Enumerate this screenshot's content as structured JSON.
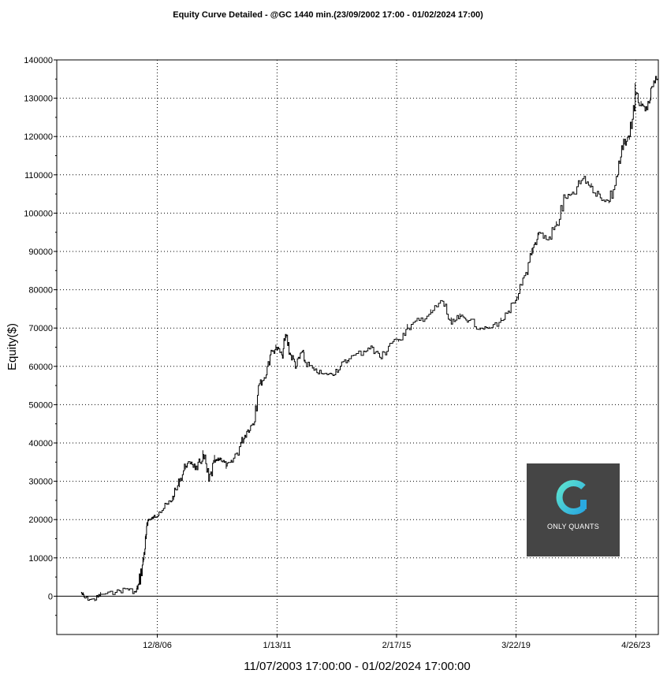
{
  "chart_data": {
    "type": "line",
    "title": "Equity Curve Detailed - @GC 1440 min.(23/09/2002 17:00 - 01/02/2024 17:00)",
    "xlabel": "11/07/2003 17:00:00 - 01/02/2024 17:00:00",
    "ylabel": "Equity($)",
    "ylim": [
      -10000,
      140000
    ],
    "yticks": [
      0,
      10000,
      20000,
      30000,
      40000,
      50000,
      60000,
      70000,
      80000,
      90000,
      100000,
      110000,
      120000,
      130000,
      140000
    ],
    "xticks": [
      "12/8/06",
      "1/13/11",
      "2/17/15",
      "3/22/19",
      "4/26/23"
    ],
    "xtick_years": [
      2006.94,
      2011.04,
      2015.13,
      2019.22,
      2023.32
    ],
    "xlim": [
      2003.5,
      2024.09
    ],
    "grid": true,
    "series": [
      {
        "x": [
          2004.33,
          2004.45,
          2004.8,
          2005.0,
          2005.5,
          2005.9,
          2006.2,
          2006.3,
          2006.45,
          2006.55,
          2006.62,
          2006.7,
          2006.8,
          2007.0,
          2007.3,
          2007.5,
          2007.7,
          2007.9,
          2008.1,
          2008.3,
          2008.5,
          2008.7,
          2008.9,
          2009.0,
          2009.1,
          2009.3,
          2009.5,
          2009.8,
          2010.0,
          2010.2,
          2010.4,
          2010.6,
          2010.8,
          2011.0,
          2011.2,
          2011.35,
          2011.5,
          2011.7,
          2011.9,
          2012.0,
          2012.3,
          2012.6,
          2012.9,
          2013.2,
          2013.5,
          2014.0,
          2014.3,
          2014.6,
          2014.9,
          2015.2,
          2015.5,
          2015.9,
          2016.3,
          2016.7,
          2017.0,
          2017.3,
          2017.6,
          2018.0,
          2018.3,
          2018.7,
          2019.0,
          2019.3,
          2019.6,
          2019.8,
          2020.0,
          2020.3,
          2020.6,
          2020.9,
          2021.2,
          2021.5,
          2021.8,
          2022.1,
          2022.4,
          2022.7,
          2022.9,
          2023.1,
          2023.3,
          2023.5,
          2023.7,
          2023.9,
          2024.09
        ],
        "y": [
          1000,
          -500,
          -1000,
          500,
          1000,
          2000,
          1000,
          3000,
          9000,
          15000,
          20000,
          20000,
          20500,
          22000,
          24000,
          26000,
          30000,
          34000,
          35000,
          33000,
          37000,
          30000,
          35000,
          35500,
          36000,
          34000,
          35000,
          40000,
          43000,
          45000,
          55000,
          57000,
          63000,
          65000,
          63000,
          68000,
          63000,
          60000,
          64000,
          61000,
          59000,
          58000,
          58000,
          60000,
          62000,
          64000,
          65000,
          62000,
          66000,
          67000,
          70000,
          72000,
          74000,
          77000,
          71000,
          73000,
          72000,
          70000,
          70000,
          72000,
          74000,
          79000,
          84000,
          91000,
          95000,
          93000,
          97000,
          104000,
          105000,
          109000,
          107000,
          104000,
          103000,
          110000,
          118000,
          120000,
          131000,
          128000,
          127000,
          133000,
          136000
        ]
      }
    ]
  },
  "logo": {
    "text": "ONLY QUANTS",
    "icon": "only-quants-logo-icon",
    "box_color": "#454545",
    "accent_color": "#3ad3d3"
  },
  "line_color": "#000000",
  "zero_line_color": "#000000",
  "grid_color": "#000000"
}
